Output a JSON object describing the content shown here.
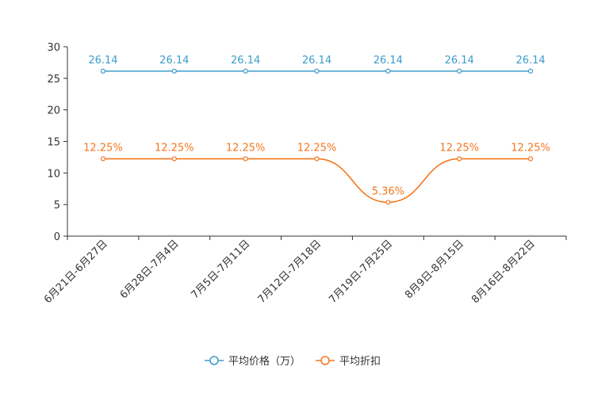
{
  "chart_data": {
    "type": "line",
    "title": "",
    "xlabel": "",
    "ylabel": "",
    "ylim": [
      0,
      30
    ],
    "yticks": [
      0,
      5,
      10,
      15,
      20,
      25,
      30
    ],
    "grid": false,
    "legend_position": "bottom",
    "categories": [
      "6月21日-6月27日",
      "6月28日-7月4日",
      "7月5日-7月11日",
      "7月12日-7月18日",
      "7月19日-7月25日",
      "8月9日-8月15日",
      "8月16日-8月22日"
    ],
    "series": [
      {
        "name": "平均价格（万）",
        "color": "#3d9ccc",
        "values": [
          26.14,
          26.14,
          26.14,
          26.14,
          26.14,
          26.14,
          26.14
        ],
        "labels": [
          "26.14",
          "26.14",
          "26.14",
          "26.14",
          "26.14",
          "26.14",
          "26.14"
        ]
      },
      {
        "name": "平均折扣",
        "color": "#f5761d",
        "values": [
          12.25,
          12.25,
          12.25,
          12.25,
          5.36,
          12.25,
          12.25
        ],
        "labels": [
          "12.25%",
          "12.25%",
          "12.25%",
          "12.25%",
          "5.36%",
          "12.25%",
          "12.25%"
        ]
      }
    ]
  }
}
